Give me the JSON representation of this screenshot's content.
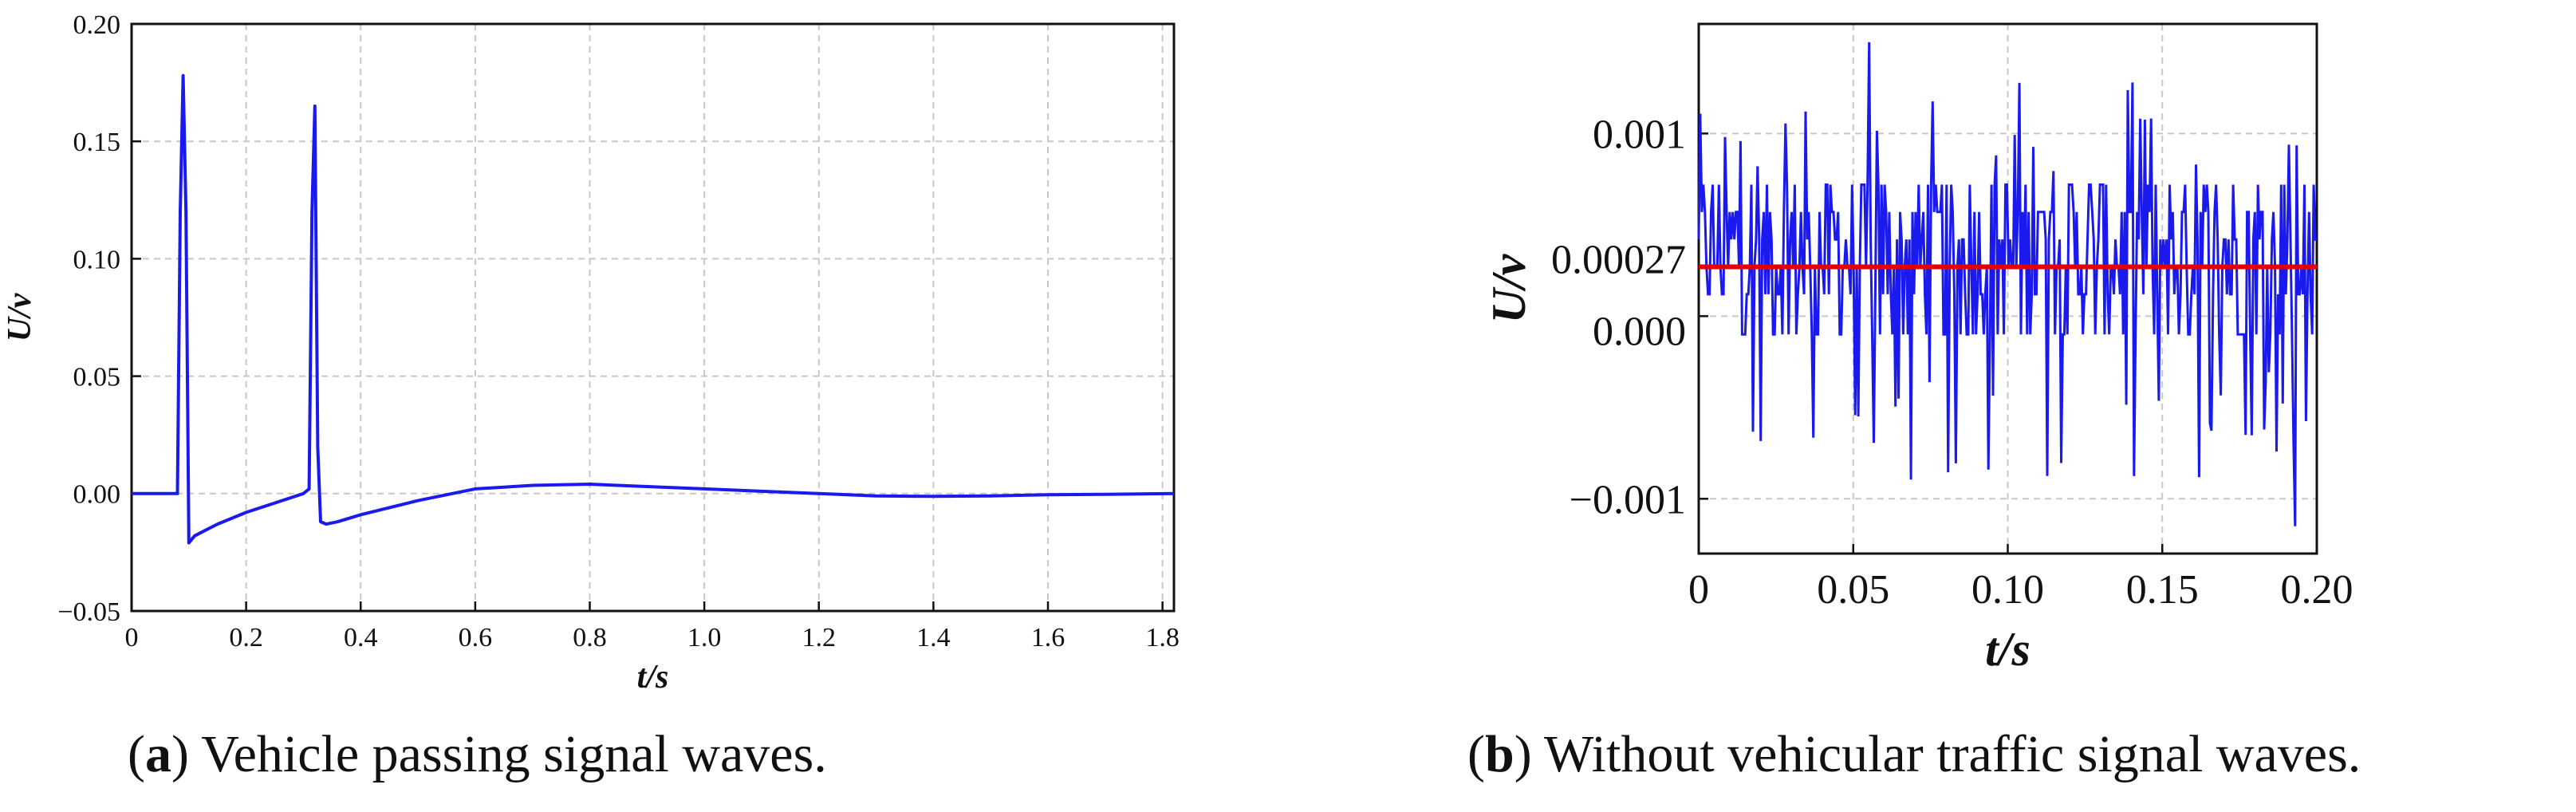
{
  "captions": {
    "a_letter": "a",
    "a_text": "Vehicle passing signal waves.",
    "b_letter": "b",
    "b_text": "Without vehicular traffic signal waves."
  },
  "colors": {
    "signal": "#1a1aee",
    "mean_line": "#e00000",
    "grid": "#c8c8c8"
  },
  "chart_data": [
    {
      "type": "line",
      "title": "",
      "xlabel": "t/s",
      "ylabel": "U/v",
      "xlim": [
        0,
        1.82
      ],
      "ylim": [
        -0.05,
        0.2
      ],
      "xticks": [
        0,
        0.2,
        0.4,
        0.6,
        0.8,
        1.0,
        1.2,
        1.4,
        1.6,
        1.8
      ],
      "xtick_labels": [
        "0",
        "0.2",
        "0.4",
        "0.6",
        "0.8",
        "1.0",
        "1.2",
        "1.4",
        "1.6",
        "1.8"
      ],
      "yticks": [
        -0.05,
        0.0,
        0.05,
        0.1,
        0.15,
        0.2
      ],
      "ytick_labels": [
        "−0.05",
        "0.00",
        "0.05",
        "0.10",
        "0.15",
        "0.20"
      ],
      "grid": true,
      "series": [
        {
          "color": "#1a1aee",
          "x": [
            0,
            0.05,
            0.08,
            0.085,
            0.09,
            0.095,
            0.1,
            0.11,
            0.15,
            0.2,
            0.25,
            0.3,
            0.31,
            0.315,
            0.32,
            0.325,
            0.33,
            0.34,
            0.36,
            0.4,
            0.5,
            0.6,
            0.7,
            0.8,
            0.9,
            1.0,
            1.1,
            1.2,
            1.3,
            1.4,
            1.5,
            1.6,
            1.7,
            1.82
          ],
          "y": [
            0,
            0,
            0.0,
            0.12,
            0.178,
            0.12,
            -0.021,
            -0.018,
            -0.013,
            -0.008,
            -0.004,
            0.0,
            0.002,
            0.12,
            0.165,
            0.02,
            -0.012,
            -0.013,
            -0.012,
            -0.009,
            -0.003,
            0.002,
            0.0035,
            0.004,
            0.003,
            0.002,
            0.001,
            0.0,
            -0.001,
            -0.0012,
            -0.001,
            -0.0005,
            -0.0003,
            0.0
          ]
        }
      ]
    },
    {
      "type": "line",
      "title": "",
      "xlabel": "t/s",
      "ylabel": "U/v",
      "xlim": [
        0,
        0.2
      ],
      "ylim": [
        -0.0013,
        0.0016
      ],
      "xticks": [
        0,
        0.05,
        0.1,
        0.15,
        0.2
      ],
      "xtick_labels": [
        "0",
        "0.05",
        "0.10",
        "0.15",
        "0.20"
      ],
      "yticks": [
        -0.001,
        0.0,
        0.00027,
        0.001
      ],
      "ytick_labels": [
        "−0.001",
        "0.000",
        "0.00027",
        "0.001"
      ],
      "grid": true,
      "series": [
        {
          "color": "#1a1aee",
          "noise_mean": 0.00027,
          "noise_min": -0.00115,
          "noise_max": 0.0015,
          "samples": 400
        },
        {
          "color": "#e00000",
          "constant": 0.00027
        }
      ]
    }
  ]
}
